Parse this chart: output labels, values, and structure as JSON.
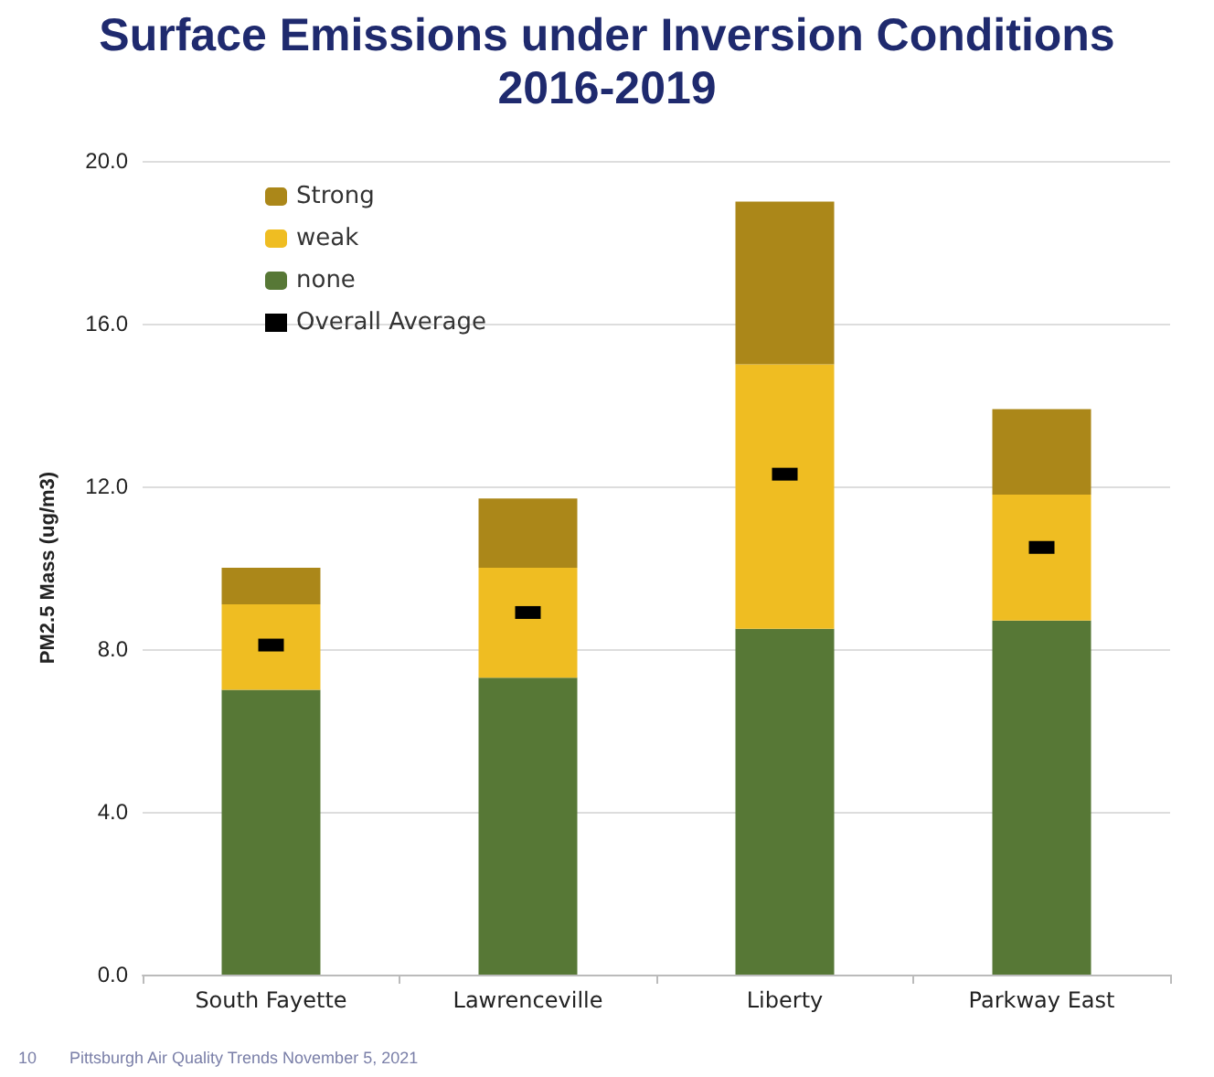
{
  "chart_data": {
    "type": "bar",
    "title": "Surface Emissions under Inversion Conditions",
    "subtitle": "2016-2019",
    "ylabel": "PM2.5 Mass (ug/m3)",
    "categories": [
      "South Fayette",
      "Lawrenceville",
      "Liberty",
      "Parkway East"
    ],
    "stacked": true,
    "series": [
      {
        "name": "none",
        "color": "#577836",
        "values": [
          7.0,
          7.3,
          8.5,
          8.7
        ]
      },
      {
        "name": "weak",
        "color": "#efbd22",
        "values": [
          2.1,
          2.7,
          6.5,
          3.1
        ]
      },
      {
        "name": "Strong",
        "color": "#ab8719",
        "values": [
          0.9,
          1.7,
          4.0,
          2.1
        ]
      },
      {
        "name": "Overall Average",
        "type": "scatter",
        "color": "#000000",
        "x": [
          "South Fayette",
          "Lawrenceville",
          "Liberty",
          "Parkway East"
        ],
        "values": [
          8.1,
          8.9,
          12.3,
          10.5
        ]
      }
    ],
    "ylim": [
      0,
      20
    ],
    "yticks": [
      {
        "value": 0,
        "label": "0.0"
      },
      {
        "value": 4,
        "label": "4.0"
      },
      {
        "value": 8,
        "label": "8.0"
      },
      {
        "value": 12,
        "label": "12.0"
      },
      {
        "value": 16,
        "label": "16.0"
      },
      {
        "value": 20,
        "label": "20.0"
      }
    ],
    "grid": "y",
    "legend": "top left",
    "annotations": [
      "10",
      "Pittsburgh Air Quality Trends November 5, 2021"
    ]
  }
}
